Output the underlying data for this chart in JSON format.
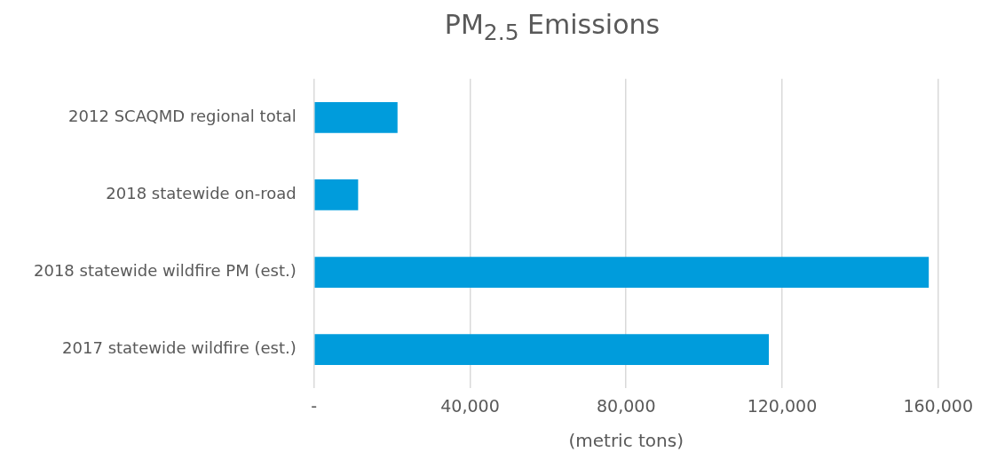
{
  "chart_data": {
    "type": "bar",
    "orientation": "horizontal",
    "title": "PM$_{2.5}$ Emissions",
    "xlabel": "(metric tons)",
    "categories": [
      "2012 SCAQMD regional total",
      "2018 statewide on-road",
      "2018 statewide wildfire PM (est.)",
      "2017 statewide wildfire (est.)"
    ],
    "values": [
      21400,
      11300,
      157600,
      116600
    ],
    "color": "#009cdc",
    "xlim": [
      0,
      160000
    ],
    "xticks": [
      {
        "value": 0,
        "label": "-"
      },
      {
        "value": 40000,
        "label": "40,000"
      },
      {
        "value": 80000,
        "label": "80,000"
      },
      {
        "value": 120000,
        "label": "120,000"
      },
      {
        "value": 160000,
        "label": "160,000"
      }
    ],
    "grid": "x",
    "legend": false
  }
}
